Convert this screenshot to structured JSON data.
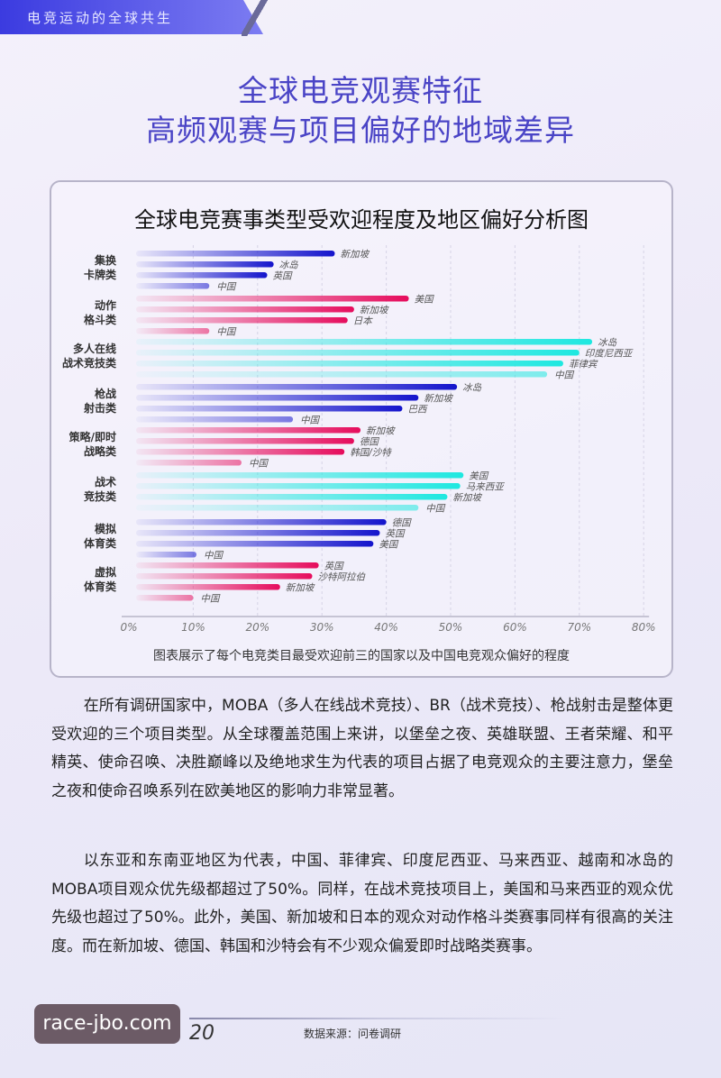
{
  "header": {
    "section": "电竞运动的全球共生"
  },
  "title": {
    "line1": "全球电竞观赛特征",
    "line2": "高频观赛与项目偏好的地域差异"
  },
  "chart_data": {
    "type": "bar",
    "orientation": "horizontal",
    "title": "全球电竞赛事类型受欢迎程度及地区偏好分析图",
    "caption": "图表展示了每个电竞类目最受欢迎前三的国家以及中国电竞观众偏好的程度",
    "xlim": [
      0,
      80
    ],
    "x_ticks": [
      "0%",
      "10%",
      "20%",
      "30%",
      "40%",
      "50%",
      "60%",
      "70%",
      "80%"
    ],
    "grid": true,
    "colors": {
      "blue": "#1414cc",
      "pink": "#e60c5c",
      "cyan": "#1ee8e0"
    },
    "groups": [
      {
        "label": [
          "集换",
          "卡牌类"
        ],
        "color": "blue",
        "bars": [
          {
            "country": "新加坡",
            "value": 32
          },
          {
            "country": "冰岛",
            "value": 22.5
          },
          {
            "country": "英国",
            "value": 21.5
          },
          {
            "country": "中国",
            "value": 12.5
          }
        ]
      },
      {
        "label": [
          "动作",
          "格斗类"
        ],
        "color": "pink",
        "bars": [
          {
            "country": "美国",
            "value": 43.5
          },
          {
            "country": "新加坡",
            "value": 35
          },
          {
            "country": "日本",
            "value": 34
          },
          {
            "country": "中国",
            "value": 12.5
          }
        ]
      },
      {
        "label": [
          "多人在线",
          "战术竞技类"
        ],
        "color": "cyan",
        "bars": [
          {
            "country": "冰岛",
            "value": 72
          },
          {
            "country": "印度尼西亚",
            "value": 70
          },
          {
            "country": "菲律宾",
            "value": 67.5
          },
          {
            "country": "中国",
            "value": 65
          }
        ]
      },
      {
        "label": [
          "枪战",
          "射击类"
        ],
        "color": "blue",
        "bars": [
          {
            "country": "冰岛",
            "value": 51
          },
          {
            "country": "新加坡",
            "value": 45
          },
          {
            "country": "巴西",
            "value": 42.5
          },
          {
            "country": "中国",
            "value": 25.5
          }
        ]
      },
      {
        "label": [
          "策略/即时",
          "战略类"
        ],
        "color": "pink",
        "bars": [
          {
            "country": "新加坡",
            "value": 36
          },
          {
            "country": "德国",
            "value": 35
          },
          {
            "country": "韩国/沙特",
            "value": 33.5
          },
          {
            "country": "中国",
            "value": 17.5
          }
        ]
      },
      {
        "label": [
          "战术",
          "竞技类"
        ],
        "color": "cyan",
        "bars": [
          {
            "country": "美国",
            "value": 52
          },
          {
            "country": "马来西亚",
            "value": 51.5
          },
          {
            "country": "新加坡",
            "value": 49.5
          },
          {
            "country": "中国",
            "value": 45
          }
        ]
      },
      {
        "label": [
          "模拟",
          "体育类"
        ],
        "color": "blue",
        "bars": [
          {
            "country": "德国",
            "value": 40
          },
          {
            "country": "英国",
            "value": 39
          },
          {
            "country": "美国",
            "value": 38
          },
          {
            "country": "中国",
            "value": 10.5
          }
        ]
      },
      {
        "label": [
          "虚拟",
          "体育类"
        ],
        "color": "pink",
        "bars": [
          {
            "country": "英国",
            "value": 29.5
          },
          {
            "country": "沙特阿拉伯",
            "value": 28.5
          },
          {
            "country": "新加坡",
            "value": 23.5
          },
          {
            "country": "中国",
            "value": 10
          }
        ]
      }
    ]
  },
  "body": {
    "p1": "在所有调研国家中，MOBA（多人在线战术竞技）、BR（战术竞技）、枪战射击是整体更受欢迎的三个项目类型。从全球覆盖范围上来讲，以堡垒之夜、英雄联盟、王者荣耀、和平精英、使命召唤、决胜巅峰以及绝地求生为代表的项目占据了电竞观众的主要注意力，堡垒之夜和使命召唤系列在欧美地区的影响力非常显著。",
    "p2": "以东亚和东南亚地区为代表，中国、菲律宾、印度尼西亚、马来西亚、越南和冰岛的MOBA项目观众优先级都超过了50%。同样，在战术竞技项目上，美国和马来西亚的观众优先级也超过了50%。此外，美国、新加坡和日本的观众对动作格斗类赛事同样有很高的关注度。而在新加坡、德国、韩国和沙特会有不少观众偏爱即时战略类赛事。"
  },
  "footer": {
    "page": "20",
    "source": "数据来源：问卷调研",
    "watermark": "race-jbo.com"
  }
}
